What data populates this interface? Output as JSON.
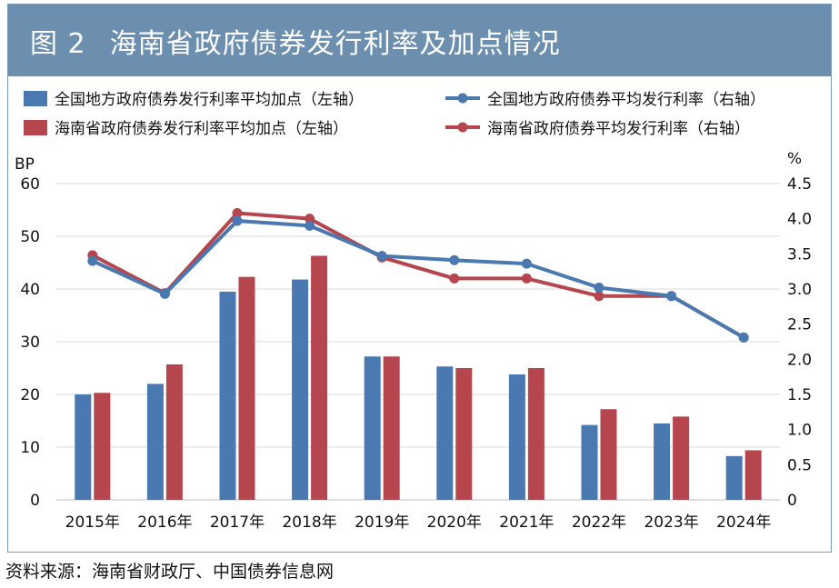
{
  "header": {
    "figure_number": "图 2",
    "title": "海南省政府债券发行利率及加点情况"
  },
  "source": "资料来源：海南省财政厅、中国债券信息网",
  "colors": {
    "national": "#4a78b0",
    "hainan": "#b5464e",
    "title_bar": "#6c8fb0"
  },
  "chart_data": {
    "type": "bar+line",
    "title": "海南省政府债券发行利率及加点情况",
    "categories": [
      "2015年",
      "2016年",
      "2017年",
      "2018年",
      "2019年",
      "2020年",
      "2021年",
      "2022年",
      "2023年",
      "2024年"
    ],
    "left_axis": {
      "unit": "BP",
      "ylim": [
        0,
        60
      ],
      "ticks": [
        "0",
        "10",
        "20",
        "30",
        "40",
        "50",
        "60"
      ]
    },
    "right_axis": {
      "unit": "%",
      "ylim": [
        0,
        4.5
      ],
      "ticks": [
        "0",
        "0.5",
        "1.0",
        "1.5",
        "2.0",
        "2.5",
        "3.0",
        "3.5",
        "4.0",
        "4.5"
      ]
    },
    "bar_series": [
      {
        "name": "全国地方政府债券发行利率平均加点（左轴）",
        "color": "national",
        "values": [
          20.0,
          22.0,
          39.5,
          41.8,
          27.2,
          25.3,
          23.8,
          14.2,
          14.5,
          8.3
        ]
      },
      {
        "name": "海南省政府债券发行利率平均加点（左轴）",
        "color": "hainan",
        "values": [
          20.3,
          25.7,
          42.3,
          46.3,
          27.2,
          25.0,
          25.0,
          17.2,
          15.8,
          9.4
        ]
      }
    ],
    "line_series": [
      {
        "name": "全国地方政府债券平均发行利率（右轴）",
        "color": "national",
        "values": [
          3.4,
          2.93,
          3.97,
          3.9,
          3.47,
          3.41,
          3.36,
          3.02,
          2.9,
          2.31
        ]
      },
      {
        "name": "海南省政府债券平均发行利率（右轴）",
        "color": "hainan",
        "values": [
          3.48,
          2.94,
          4.08,
          4.0,
          3.45,
          3.15,
          3.15,
          2.9,
          2.9,
          2.31
        ]
      }
    ],
    "legend_position": "top"
  }
}
